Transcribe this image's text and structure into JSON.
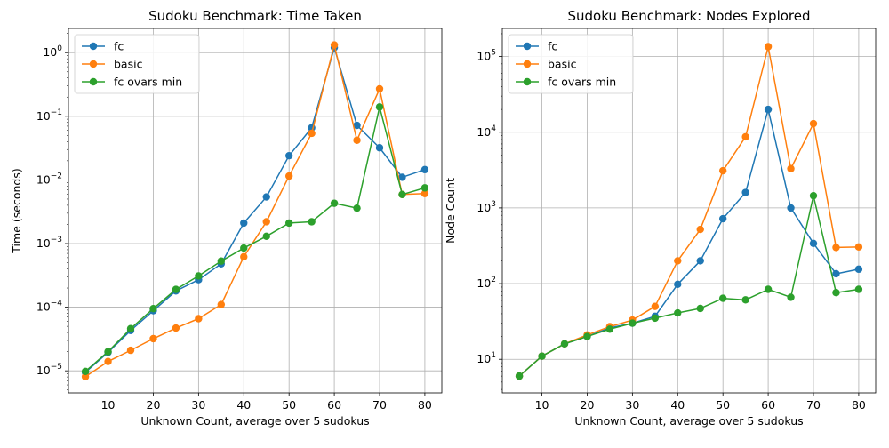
{
  "chart_data": [
    {
      "type": "line",
      "title": "Sudoku Benchmark: Time Taken",
      "xlabel": "Unknown Count, average over 5 sudokus",
      "ylabel": "Time (seconds)",
      "yscale": "log",
      "xlim": [
        1.25,
        83.75
      ],
      "ylim": [
        4.5e-06,
        2.4
      ],
      "grid": true,
      "legend_position": "top-left",
      "x": [
        5,
        10,
        15,
        20,
        25,
        30,
        35,
        40,
        45,
        50,
        55,
        60,
        65,
        70,
        75,
        80
      ],
      "x_ticks": [
        "10",
        "20",
        "30",
        "40",
        "50",
        "60",
        "70",
        "80"
      ],
      "y_ticks": [
        {
          "label": "10",
          "exp": "−5",
          "value": 1e-05
        },
        {
          "label": "10",
          "exp": "−4",
          "value": 0.0001
        },
        {
          "label": "10",
          "exp": "−3",
          "value": 0.001
        },
        {
          "label": "10",
          "exp": "−2",
          "value": 0.01
        },
        {
          "label": "10",
          "exp": "−1",
          "value": 0.1
        },
        {
          "label": "10",
          "exp": "0",
          "value": 1
        }
      ],
      "series": [
        {
          "name": "fc",
          "color": "#1f77b4",
          "values": [
            9.5e-06,
            1.95e-05,
            4.3e-05,
            8.8e-05,
            0.00018,
            0.00027,
            0.00048,
            0.0021,
            0.0054,
            0.024,
            0.066,
            1.2,
            0.072,
            0.032,
            0.011,
            0.0145
          ]
        },
        {
          "name": "basic",
          "color": "#ff7f0e",
          "values": [
            8.1e-06,
            1.4e-05,
            2.1e-05,
            3.2e-05,
            4.7e-05,
            6.6e-05,
            0.00011,
            0.00062,
            0.0022,
            0.0115,
            0.054,
            1.32,
            0.042,
            0.27,
            0.0059,
            0.0061
          ]
        },
        {
          "name": "fc ovars min",
          "color": "#2ca02c",
          "values": [
            9.8e-06,
            2e-05,
            4.6e-05,
            9.5e-05,
            0.00019,
            0.00031,
            0.00053,
            0.00085,
            0.0013,
            0.0021,
            0.0022,
            0.0043,
            0.0036,
            0.14,
            0.0059,
            0.0075
          ]
        }
      ]
    },
    {
      "type": "line",
      "title": "Sudoku Benchmark: Nodes Explored",
      "xlabel": "Unknown Count, average over 5 sudokus",
      "ylabel": "Node Count",
      "yscale": "log",
      "xlim": [
        1.25,
        83.75
      ],
      "ylim": [
        3.6,
        235000
      ],
      "grid": true,
      "legend_position": "top-left",
      "x": [
        5,
        10,
        15,
        20,
        25,
        30,
        35,
        40,
        45,
        50,
        55,
        60,
        65,
        70,
        75,
        80
      ],
      "x_ticks": [
        "10",
        "20",
        "30",
        "40",
        "50",
        "60",
        "70",
        "80"
      ],
      "y_ticks": [
        {
          "label": "10",
          "exp": "1",
          "value": 10
        },
        {
          "label": "10",
          "exp": "2",
          "value": 100
        },
        {
          "label": "10",
          "exp": "3",
          "value": 1000
        },
        {
          "label": "10",
          "exp": "4",
          "value": 10000
        },
        {
          "label": "10",
          "exp": "5",
          "value": 100000
        }
      ],
      "series": [
        {
          "name": "fc",
          "color": "#1f77b4",
          "values": [
            6,
            11,
            16,
            20,
            26,
            30,
            37,
            98,
            200,
            720,
            1600,
            20000,
            1000,
            340,
            135,
            155
          ]
        },
        {
          "name": "basic",
          "color": "#ff7f0e",
          "values": [
            6,
            11,
            16,
            21,
            27,
            33,
            50,
            200,
            520,
            3100,
            8700,
            135000,
            3300,
            13000,
            300,
            305
          ]
        },
        {
          "name": "fc ovars min",
          "color": "#2ca02c",
          "values": [
            6,
            11,
            16,
            20,
            25,
            30,
            35,
            41,
            47,
            64,
            61,
            84,
            66,
            1450,
            76,
            84
          ]
        }
      ]
    }
  ]
}
